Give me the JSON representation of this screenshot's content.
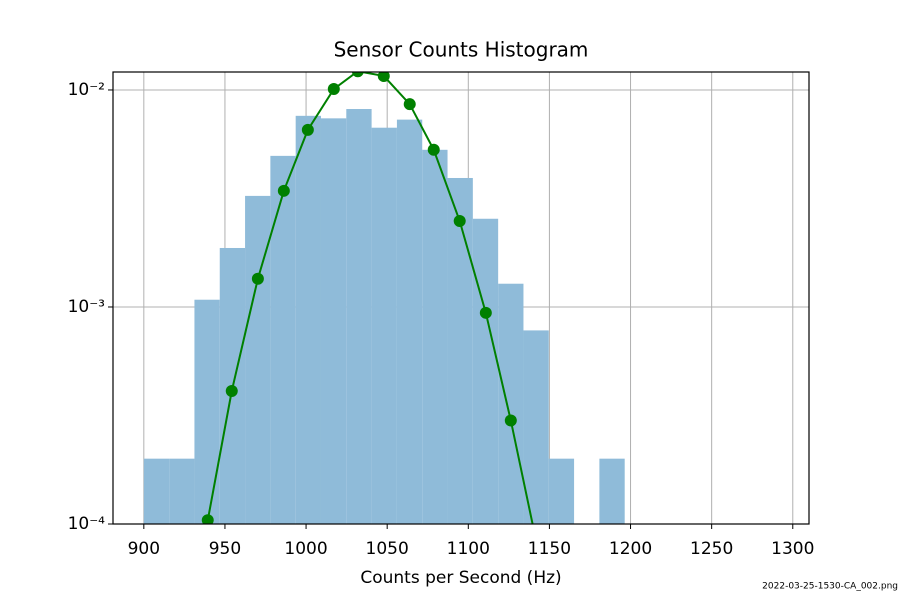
{
  "chart_data": {
    "type": "histogram",
    "title": "Sensor Counts Histogram",
    "xlabel": "Counts per Second (Hz)",
    "footnote": "2022-03-25-1530-CA_002.png",
    "bins": [
      900,
      915.6,
      931.2,
      946.8,
      962.4,
      978,
      993.6,
      1009.2,
      1024.8,
      1040.4,
      1056,
      1071.6,
      1087.2,
      1102.8,
      1118.4,
      1134,
      1149.6,
      1165.2,
      1180.8,
      1196.4,
      1212,
      1227.6,
      1243.2,
      1258.8,
      1274.4,
      1290
    ],
    "values": [
      0.0002,
      0.0002,
      0.00108,
      0.00187,
      0.00325,
      0.00497,
      0.0076,
      0.0074,
      0.00817,
      0.0067,
      0.0073,
      0.0053,
      0.00393,
      0.00255,
      0.00128,
      0.00078,
      0.0002,
      0,
      0.0002,
      0,
      0,
      0,
      0,
      0,
      0
    ],
    "color": "#8fbbd9",
    "line": {
      "type": "line",
      "color": "#008000",
      "marker": "circle",
      "x": [
        939.4,
        954.2,
        970.3,
        986.3,
        1001.1,
        1017.1,
        1031.9,
        1047.9,
        1063.9,
        1078.7,
        1094.7,
        1110.8,
        1126.2,
        1142.2
      ],
      "values": [
        0.000104,
        0.00041,
        0.00135,
        0.00343,
        0.00655,
        0.0101,
        0.0122,
        0.0116,
        0.0086,
        0.0053,
        0.00249,
        0.00094,
        0.0003,
        8.1e-05
      ]
    },
    "xlim": [
      881,
      1310
    ],
    "xticks": [
      900,
      950,
      1000,
      1050,
      1100,
      1150,
      1200,
      1250,
      1300
    ],
    "ylim": [
      0.0001,
      0.0121
    ],
    "yscale": "log",
    "yticks": [
      {
        "value": 0.0001,
        "label": "10⁻⁴"
      },
      {
        "value": 0.001,
        "label": "10⁻³"
      },
      {
        "value": 0.01,
        "label": "10⁻²"
      }
    ],
    "grid": true
  }
}
